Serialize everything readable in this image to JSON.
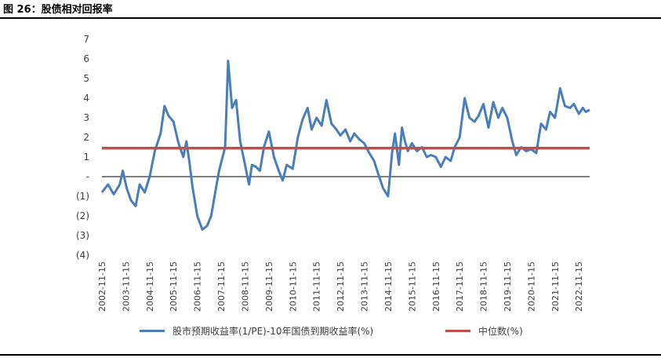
{
  "figure_title": "图 26：股债相对回报率",
  "chart_data": {
    "type": "line",
    "y_ticks": [
      "7",
      "6",
      "5",
      "4",
      "3",
      "2",
      "1",
      "-",
      "(1)",
      "(2)",
      "(3)",
      "(4)"
    ],
    "ylim": [
      -4,
      7
    ],
    "x_tick_labels": [
      "2002-11-15",
      "2003-11-15",
      "2004-11-15",
      "2005-11-15",
      "2006-11-15",
      "2007-11-15",
      "2008-11-15",
      "2009-11-15",
      "2010-11-15",
      "2011-11-15",
      "2012-11-15",
      "2013-11-15",
      "2014-11-15",
      "2015-11-15",
      "2016-11-15",
      "2017-11-15",
      "2018-11-15",
      "2019-11-15",
      "2020-11-15",
      "2021-11-15",
      "2022-11-15"
    ],
    "xlim": [
      "2002-11-15",
      "2023-04-30"
    ],
    "series": [
      {
        "name": "股市预期收益率(1/PE)-10年国债到期收益率(%)",
        "color": "#4A7EBB",
        "x": [
          "2002-11-15",
          "2003-02-15",
          "2003-05-15",
          "2003-08-15",
          "2003-10-01",
          "2003-12-01",
          "2004-02-01",
          "2004-04-15",
          "2004-06-15",
          "2004-09-01",
          "2004-11-15",
          "2005-02-01",
          "2005-05-01",
          "2005-07-01",
          "2005-09-01",
          "2005-11-15",
          "2006-02-01",
          "2006-04-15",
          "2006-06-01",
          "2006-07-15",
          "2006-09-01",
          "2006-11-15",
          "2007-02-01",
          "2007-04-15",
          "2007-06-15",
          "2007-09-01",
          "2007-10-15",
          "2008-01-15",
          "2008-03-01",
          "2008-05-01",
          "2008-07-01",
          "2008-09-01",
          "2008-11-15",
          "2008-12-15",
          "2009-01-15",
          "2009-03-01",
          "2009-05-01",
          "2009-07-01",
          "2009-09-01",
          "2009-11-15",
          "2010-02-01",
          "2010-04-15",
          "2010-06-15",
          "2010-08-15",
          "2010-11-15",
          "2011-02-01",
          "2011-04-15",
          "2011-07-01",
          "2011-09-01",
          "2011-11-15",
          "2012-02-01",
          "2012-04-15",
          "2012-07-01",
          "2012-09-15",
          "2012-11-15",
          "2013-02-01",
          "2013-04-15",
          "2013-06-15",
          "2013-09-01",
          "2013-11-15",
          "2014-02-01",
          "2014-04-15",
          "2014-07-01",
          "2014-09-01",
          "2014-11-15",
          "2015-01-15",
          "2015-03-01",
          "2015-05-01",
          "2015-06-15",
          "2015-08-01",
          "2015-09-15",
          "2015-11-15",
          "2016-02-01",
          "2016-04-15",
          "2016-07-01",
          "2016-09-01",
          "2016-11-15",
          "2017-02-01",
          "2017-04-15",
          "2017-07-01",
          "2017-09-01",
          "2017-11-15",
          "2018-02-01",
          "2018-04-15",
          "2018-07-01",
          "2018-09-01",
          "2018-11-15",
          "2019-02-01",
          "2019-04-15",
          "2019-07-01",
          "2019-09-01",
          "2019-11-15",
          "2020-02-01",
          "2020-04-01",
          "2020-06-15",
          "2020-09-01",
          "2020-11-15",
          "2021-02-01",
          "2021-04-15",
          "2021-07-01",
          "2021-09-01",
          "2021-11-15",
          "2022-02-01",
          "2022-04-15",
          "2022-07-01",
          "2022-09-01",
          "2022-11-15",
          "2023-01-15",
          "2023-03-01",
          "2023-04-30"
        ],
        "y": [
          -0.8,
          -0.4,
          -0.9,
          -0.4,
          0.3,
          -0.6,
          -1.2,
          -1.5,
          -0.4,
          -0.8,
          0.0,
          1.3,
          2.2,
          3.6,
          3.1,
          2.8,
          1.7,
          1.0,
          1.8,
          0.8,
          -0.5,
          -2.0,
          -2.7,
          -2.5,
          -2.0,
          -0.5,
          0.3,
          1.5,
          5.9,
          3.5,
          3.9,
          1.8,
          0.6,
          0.1,
          -0.4,
          0.6,
          0.5,
          0.3,
          1.5,
          2.3,
          1.0,
          0.3,
          -0.2,
          0.6,
          0.4,
          2.0,
          2.9,
          3.5,
          2.4,
          3.0,
          2.6,
          3.9,
          2.7,
          2.4,
          2.1,
          2.4,
          1.8,
          2.2,
          1.9,
          1.7,
          1.2,
          0.8,
          0.0,
          -0.6,
          -1.0,
          1.2,
          2.2,
          0.6,
          2.5,
          1.8,
          1.3,
          1.7,
          1.3,
          1.5,
          1.0,
          1.1,
          1.0,
          0.5,
          1.0,
          0.8,
          1.5,
          2.0,
          4.0,
          3.0,
          2.8,
          3.1,
          3.7,
          2.5,
          3.8,
          3.0,
          3.5,
          3.0,
          1.8,
          1.1,
          1.5,
          1.3,
          1.4,
          1.2,
          2.7,
          2.4,
          3.3,
          3.0,
          4.5,
          3.6,
          3.5,
          3.7,
          3.2,
          3.5,
          3.3,
          3.4
        ]
      },
      {
        "name": "中位数(%)",
        "color": "#C0504D",
        "x": [
          "2002-11-15",
          "2023-04-30"
        ],
        "y": [
          1.45,
          1.45
        ]
      }
    ],
    "legend_position": "bottom"
  }
}
